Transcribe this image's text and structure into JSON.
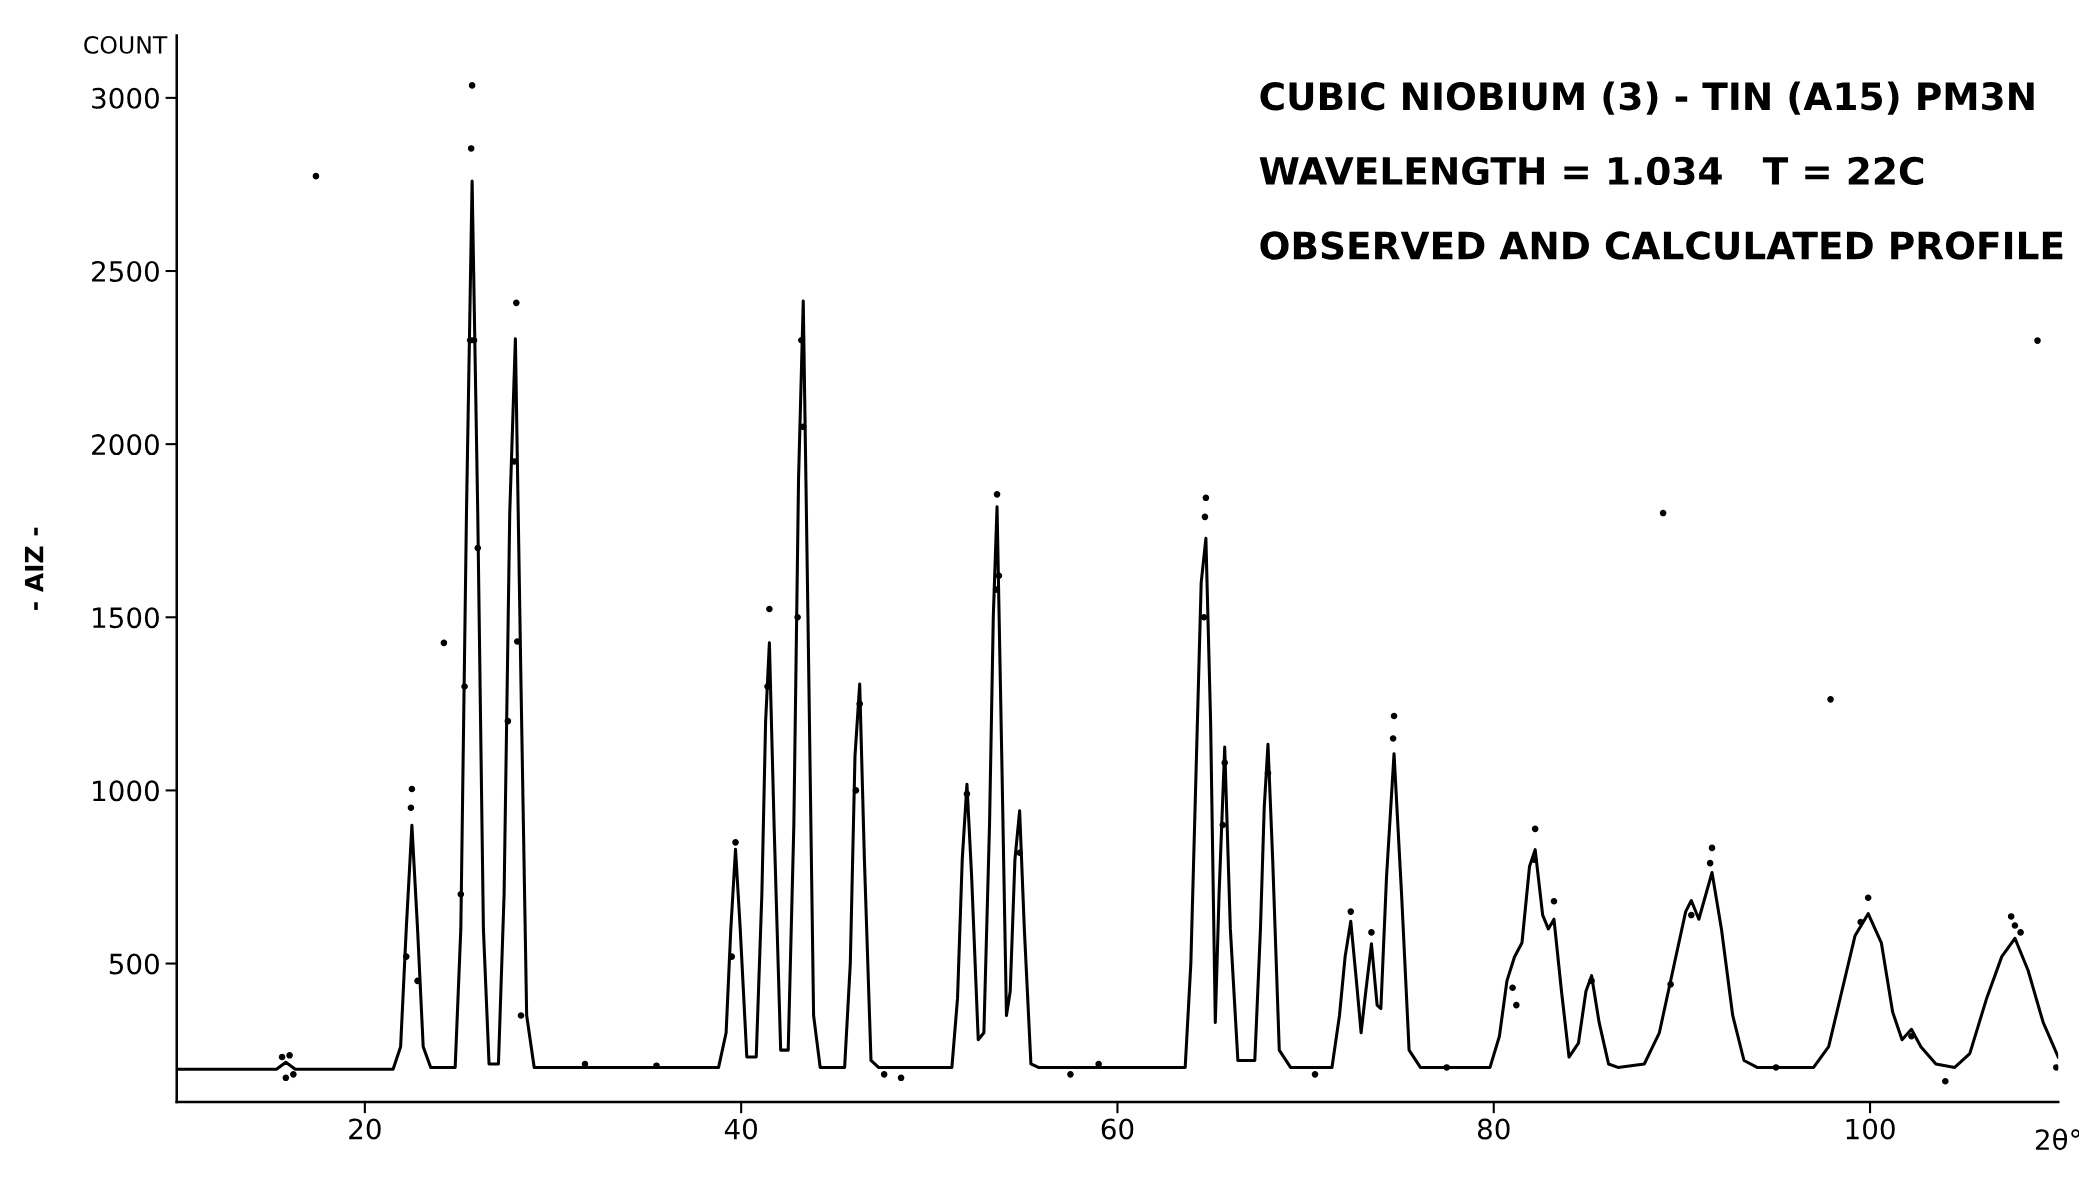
{
  "chart_data": {
    "type": "line",
    "title": "CUBIC NIOBIUM (3) - TIN (A15) PM3N",
    "subtitle": "WAVELENGTH = 1.034   T = 22C",
    "annotations": [
      "OBSERVED AND CALCULATED PROFILE",
      "COUNT"
    ],
    "xlabel": "2θ°",
    "ylabel": "- AIZ -",
    "xlim": [
      10,
      110
    ],
    "xticks": [
      20,
      40,
      60,
      80,
      100
    ],
    "ylim": [
      100,
      3180
    ],
    "yticks": [
      500,
      1000,
      1500,
      2000,
      2500,
      3000
    ],
    "grid": false,
    "series": [
      {
        "color": "#000000",
        "marker": "none",
        "line_style": "solid",
        "x": [
          10,
          15.3,
          15.8,
          16.3,
          21.5,
          21.9,
          22.2,
          22.5,
          22.8,
          23.1,
          23.5,
          24.8,
          25.1,
          25.4,
          25.7,
          26.0,
          26.3,
          26.6,
          27.1,
          27.4,
          27.7,
          28.0,
          28.3,
          28.6,
          29.0,
          38.8,
          39.2,
          39.45,
          39.7,
          39.95,
          40.3,
          40.8,
          41.1,
          41.3,
          41.5,
          41.75,
          42.1,
          42.5,
          42.8,
          43.05,
          43.3,
          43.55,
          43.85,
          44.2,
          45.5,
          45.8,
          46.05,
          46.3,
          46.55,
          46.9,
          47.3,
          51.2,
          51.5,
          51.75,
          52.0,
          52.25,
          52.6,
          52.9,
          53.2,
          53.4,
          53.6,
          53.85,
          54.1,
          54.3,
          54.55,
          54.8,
          55.05,
          55.4,
          55.8,
          63.6,
          63.9,
          64.2,
          64.45,
          64.7,
          64.95,
          65.2,
          65.4,
          65.7,
          66.0,
          66.4,
          67.3,
          67.6,
          67.8,
          68.0,
          68.25,
          68.6,
          69.2,
          71.4,
          71.8,
          72.1,
          72.4,
          72.7,
          72.95,
          73.2,
          73.5,
          73.8,
          74.0,
          74.3,
          74.7,
          75.1,
          75.5,
          76.1,
          79.8,
          80.3,
          80.7,
          81.1,
          81.5,
          81.9,
          82.2,
          82.6,
          82.9,
          83.2,
          83.6,
          84.0,
          84.5,
          84.9,
          85.2,
          85.6,
          86.1,
          86.6,
          88.0,
          88.8,
          89.6,
          90.2,
          90.5,
          90.9,
          91.6,
          92.1,
          92.7,
          93.3,
          94.0,
          97.0,
          97.8,
          98.5,
          99.2,
          99.9,
          100.6,
          101.2,
          101.7,
          102.2,
          102.7,
          103.5,
          104.5,
          105.3,
          106.2,
          107.0,
          107.7,
          108.4,
          109.2,
          110
        ],
        "values": [
          195,
          195,
          215,
          195,
          195,
          260,
          600,
          899,
          600,
          260,
          200,
          200,
          600,
          1800,
          2760,
          1800,
          600,
          210,
          210,
          700,
          1800,
          2304,
          1300,
          350,
          200,
          200,
          300,
          600,
          830,
          600,
          230,
          230,
          700,
          1200,
          1426,
          900,
          250,
          250,
          900,
          1900,
          2413,
          1500,
          350,
          200,
          200,
          500,
          1100,
          1307,
          800,
          220,
          200,
          200,
          400,
          800,
          1018,
          750,
          280,
          300,
          900,
          1500,
          1819,
          1100,
          350,
          420,
          800,
          941,
          600,
          210,
          200,
          200,
          500,
          1100,
          1600,
          1728,
          1200,
          330,
          700,
          1125,
          600,
          220,
          220,
          600,
          950,
          1133,
          800,
          250,
          200,
          200,
          350,
          520,
          622,
          450,
          300,
          420,
          557,
          380,
          370,
          750,
          1106,
          700,
          250,
          200,
          200,
          290,
          450,
          519,
          560,
          780,
          829,
          640,
          600,
          628,
          420,
          230,
          270,
          420,
          465,
          330,
          210,
          200,
          210,
          300,
          500,
          650,
          682,
          628,
          763,
          600,
          350,
          220,
          200,
          200,
          260,
          420,
          580,
          644,
          560,
          360,
          280,
          310,
          260,
          210,
          200,
          240,
          400,
          520,
          573,
          480,
          330,
          230
        ]
      },
      {
        "type": "scatter",
        "color": "#000000",
        "marker": "circle",
        "x": [
          15.6,
          15.8,
          16.0,
          16.2,
          17.4,
          22.5,
          22.45,
          22.2,
          22.8,
          24.2,
          25.7,
          25.65,
          25.6,
          25.8,
          25.3,
          26.0,
          25.1,
          28.05,
          27.95,
          28.1,
          27.6,
          28.3,
          31.7,
          35.5,
          39.7,
          39.5,
          41.5,
          41.4,
          43.3,
          43.2,
          43.0,
          46.3,
          46.1,
          47.6,
          48.5,
          52.0,
          53.6,
          53.55,
          53.7,
          54.8,
          57.5,
          59.0,
          64.7,
          64.65,
          64.6,
          65.7,
          65.6,
          68.0,
          70.5,
          72.4,
          73.5,
          74.7,
          74.65,
          77.5,
          81.0,
          81.2,
          82.2,
          82.15,
          83.2,
          85.2,
          89.0,
          89.4,
          90.5,
          91.6,
          91.5,
          95.0,
          97.9,
          99.9,
          99.5,
          102.2,
          104.0,
          107.5,
          107.7,
          108.0,
          108.9,
          109.9
        ],
        "values": [
          230,
          170,
          235,
          180,
          2774,
          1004,
          950,
          520,
          450,
          1426,
          3036,
          2854,
          2300,
          2300,
          1300,
          1700,
          700,
          2408,
          1950,
          1430,
          1200,
          350,
          210,
          205,
          850,
          520,
          1524,
          1300,
          2050,
          2300,
          1500,
          1250,
          1000,
          180,
          170,
          990,
          1855,
          1580,
          1620,
          820,
          180,
          210,
          1845,
          1790,
          1500,
          1080,
          900,
          1050,
          180,
          650,
          590,
          1215,
          1150,
          200,
          430,
          380,
          889,
          800,
          680,
          450,
          1801,
          440,
          640,
          834,
          790,
          200,
          1263,
          690,
          620,
          290,
          160,
          636,
          610,
          590,
          2299,
          200
        ]
      }
    ]
  }
}
